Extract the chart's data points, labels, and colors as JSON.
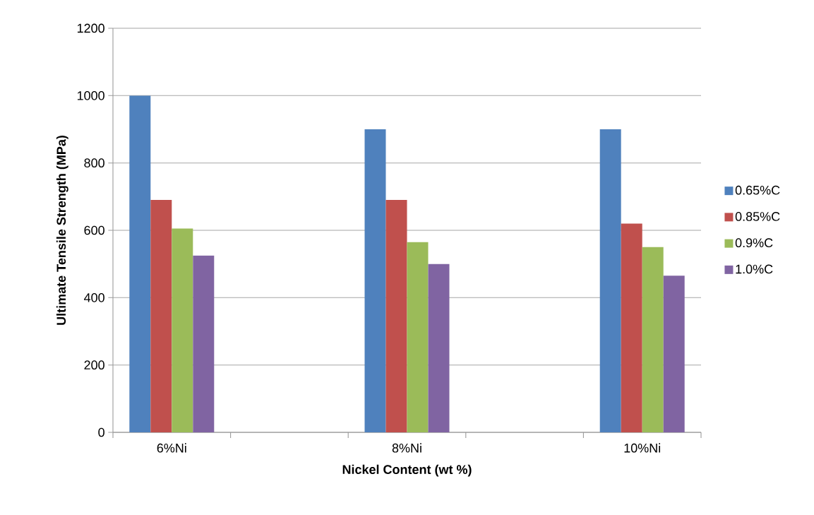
{
  "chart_data": {
    "type": "bar",
    "xlabel": "Nickel Content (wt %)",
    "ylabel": "Ultimate Tensile Strength (MPa)",
    "categories": [
      "6%Ni",
      null,
      "8%Ni",
      null,
      "10%Ni"
    ],
    "series": [
      {
        "name": "0.65%C",
        "color": "#4f81bd",
        "values": [
          1000,
          null,
          900,
          null,
          900
        ]
      },
      {
        "name": "0.85%C",
        "color": "#c0504d",
        "values": [
          690,
          null,
          690,
          null,
          620
        ]
      },
      {
        "name": "0.9%C",
        "color": "#9bbb59",
        "values": [
          605,
          null,
          565,
          null,
          550
        ]
      },
      {
        "name": "1.0%C",
        "color": "#8064a2",
        "values": [
          525,
          null,
          500,
          null,
          465
        ]
      }
    ],
    "ylim": [
      0,
      1200
    ],
    "yticks": [
      0,
      200,
      400,
      600,
      800,
      1000,
      1200
    ],
    "grid": "y",
    "legend": "right"
  }
}
